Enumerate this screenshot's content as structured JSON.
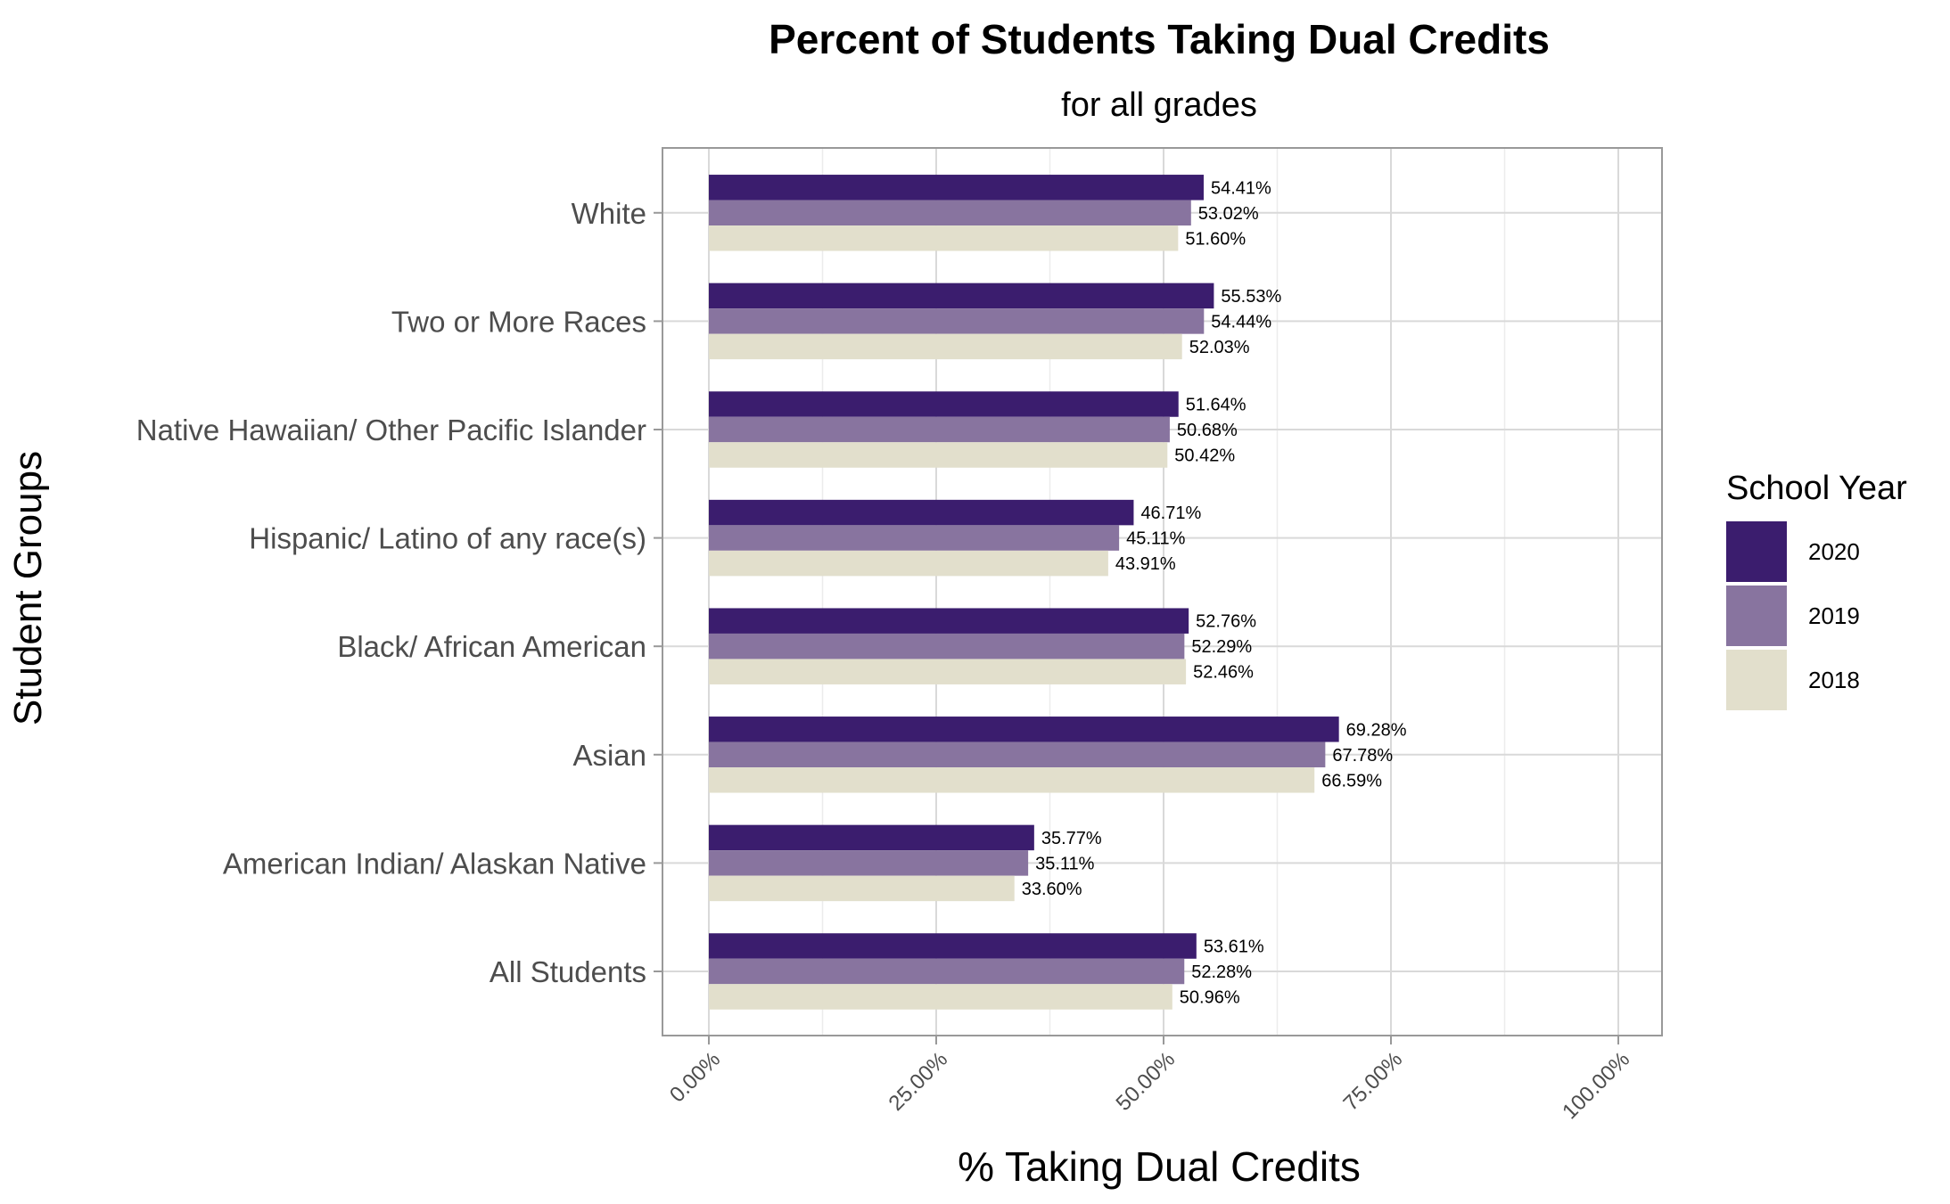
{
  "chart_data": {
    "type": "bar",
    "orientation": "horizontal",
    "title": "Percent of Students Taking Dual Credits",
    "subtitle": "for all grades",
    "xlabel": "% Taking Dual Credits",
    "ylabel": "Student Groups",
    "xlim": [
      0,
      100
    ],
    "x_ticks": [
      "0.00%",
      "25.00%",
      "50.00%",
      "75.00%",
      "100.00%"
    ],
    "grid": true,
    "legend": {
      "title": "School Year",
      "position": "right"
    },
    "categories": [
      "All Students",
      "American Indian/ Alaskan Native",
      "Asian",
      "Black/ African American",
      "Hispanic/ Latino of any race(s)",
      "Native Hawaiian/ Other Pacific Islander",
      "Two or More Races",
      "White"
    ],
    "series": [
      {
        "name": "2020",
        "color": "#3b1d6e",
        "values": [
          53.61,
          35.77,
          69.28,
          52.76,
          46.71,
          51.64,
          55.53,
          54.41
        ],
        "labels": [
          "53.61%",
          "35.77%",
          "69.28%",
          "52.76%",
          "46.71%",
          "51.64%",
          "55.53%",
          "54.41%"
        ]
      },
      {
        "name": "2019",
        "color": "#88749f",
        "values": [
          52.28,
          35.11,
          67.78,
          52.29,
          45.11,
          50.68,
          54.44,
          53.02
        ],
        "labels": [
          "52.28%",
          "35.11%",
          "67.78%",
          "52.29%",
          "45.11%",
          "50.68%",
          "54.44%",
          "53.02%"
        ]
      },
      {
        "name": "2018",
        "color": "#e2dfcc",
        "values": [
          50.96,
          33.6,
          66.59,
          52.46,
          43.91,
          50.42,
          52.03,
          51.6
        ],
        "labels": [
          "50.96%",
          "33.60%",
          "66.59%",
          "52.46%",
          "43.91%",
          "50.42%",
          "52.03%",
          "51.60%"
        ]
      }
    ]
  }
}
